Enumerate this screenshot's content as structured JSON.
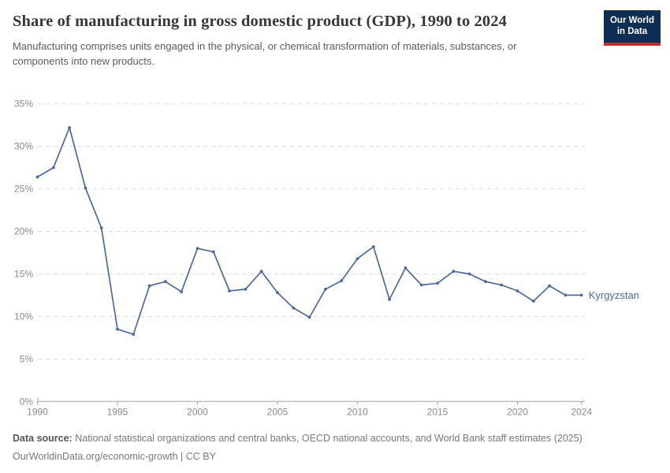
{
  "header": {
    "title": "Share of manufacturing in gross domestic product (GDP), 1990 to 2024",
    "subtitle": "Manufacturing comprises units engaged in the physical, or chemical transformation of materials, substances, or components into new products."
  },
  "logo": {
    "line1": "Our World",
    "line2": "in Data",
    "bg_color": "#0d2d52",
    "stripe_color": "#bf2e26"
  },
  "chart_data": {
    "type": "line",
    "title": "Share of manufacturing in gross domestic product (GDP), 1990 to 2024",
    "x": [
      1990,
      1991,
      1992,
      1993,
      1994,
      1995,
      1996,
      1997,
      1998,
      1999,
      2000,
      2001,
      2002,
      2003,
      2004,
      2005,
      2006,
      2007,
      2008,
      2009,
      2010,
      2011,
      2012,
      2013,
      2014,
      2015,
      2016,
      2017,
      2018,
      2019,
      2020,
      2021,
      2022,
      2023,
      2024
    ],
    "series": [
      {
        "name": "Kyrgyzstan",
        "color": "#4C6A9C",
        "values": [
          26.4,
          27.5,
          32.2,
          25.1,
          20.4,
          8.5,
          7.9,
          13.6,
          14.1,
          12.9,
          18.0,
          17.6,
          13.0,
          13.2,
          15.3,
          12.8,
          11.0,
          9.9,
          13.2,
          14.2,
          16.8,
          18.2,
          12.0,
          15.7,
          13.7,
          13.9,
          15.3,
          15.0,
          14.1,
          13.7,
          13.0,
          11.8,
          13.6,
          12.5,
          12.5
        ]
      }
    ],
    "xlabel": "",
    "ylabel": "",
    "ylim": [
      0,
      35
    ],
    "yticks": [
      0,
      5,
      10,
      15,
      20,
      25,
      30,
      35
    ],
    "ytick_suffix": "%",
    "xticks": [
      1990,
      1995,
      2000,
      2005,
      2010,
      2015,
      2020,
      2024
    ],
    "grid": "horizontal-dashed",
    "legend": "line-end-label"
  },
  "footer": {
    "source_label": "Data source:",
    "source_text": "National statistical organizations and central banks, OECD national accounts, and World Bank staff estimates (2025)",
    "link_line": "OurWorldinData.org/economic-growth | CC BY"
  },
  "colors": {
    "axis_label": "#8a8a8a",
    "gridline": "#dcdcdc",
    "axis_line": "#a0a0a0",
    "line": "#4C6A9C"
  }
}
